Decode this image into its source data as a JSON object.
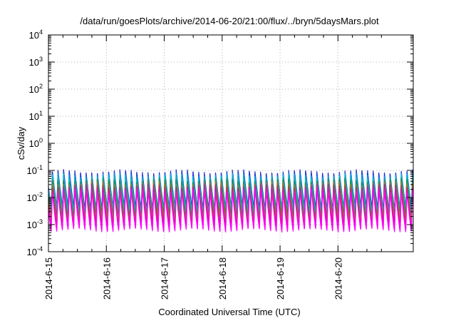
{
  "chart_data": {
    "type": "line",
    "title": "/data/run/goesPlots/archive/2014-06-20/21:00/flux/../bryn/5daysMars.plot",
    "xlabel": "Coordinated Universal Time (UTC)",
    "ylabel": "cSv/day",
    "y_scale": "log",
    "ylim": [
      0.0001,
      10000
    ],
    "xlim_days": [
      0,
      6.3
    ],
    "grid": true,
    "legend": "none",
    "x_ticks": [
      "2014-6-15",
      "2014-6-16",
      "2014-6-17",
      "2014-6-18",
      "2014-6-19",
      "2014-6-20"
    ],
    "y_ticks": [
      {
        "base": "10",
        "exp": "-4"
      },
      {
        "base": "10",
        "exp": "-3"
      },
      {
        "base": "10",
        "exp": "-2"
      },
      {
        "base": "10",
        "exp": "-1"
      },
      {
        "base": "10",
        "exp": "0"
      },
      {
        "base": "10",
        "exp": "1"
      },
      {
        "base": "10",
        "exp": "2"
      },
      {
        "base": "10",
        "exp": "3"
      },
      {
        "base": "10",
        "exp": "4"
      }
    ],
    "orbit_period_days": 0.0972,
    "series": [
      {
        "color": "#2233cc",
        "peak": 0.095,
        "trough": 0.0045
      },
      {
        "color": "#00aadd",
        "peak": 0.07,
        "trough": 0.0035
      },
      {
        "color": "#00ccbb",
        "peak": 0.055,
        "trough": 0.0028
      },
      {
        "color": "#228844",
        "peak": 0.045,
        "trough": 0.0022
      },
      {
        "color": "#aa7722",
        "peak": 0.035,
        "trough": 0.0016
      },
      {
        "color": "#cc2266",
        "peak": 0.028,
        "trough": 0.0011
      },
      {
        "color": "#ee00cc",
        "peak": 0.022,
        "trough": 0.0008
      },
      {
        "color": "#ff00ff",
        "peak": 0.018,
        "trough": 0.0006
      }
    ]
  }
}
